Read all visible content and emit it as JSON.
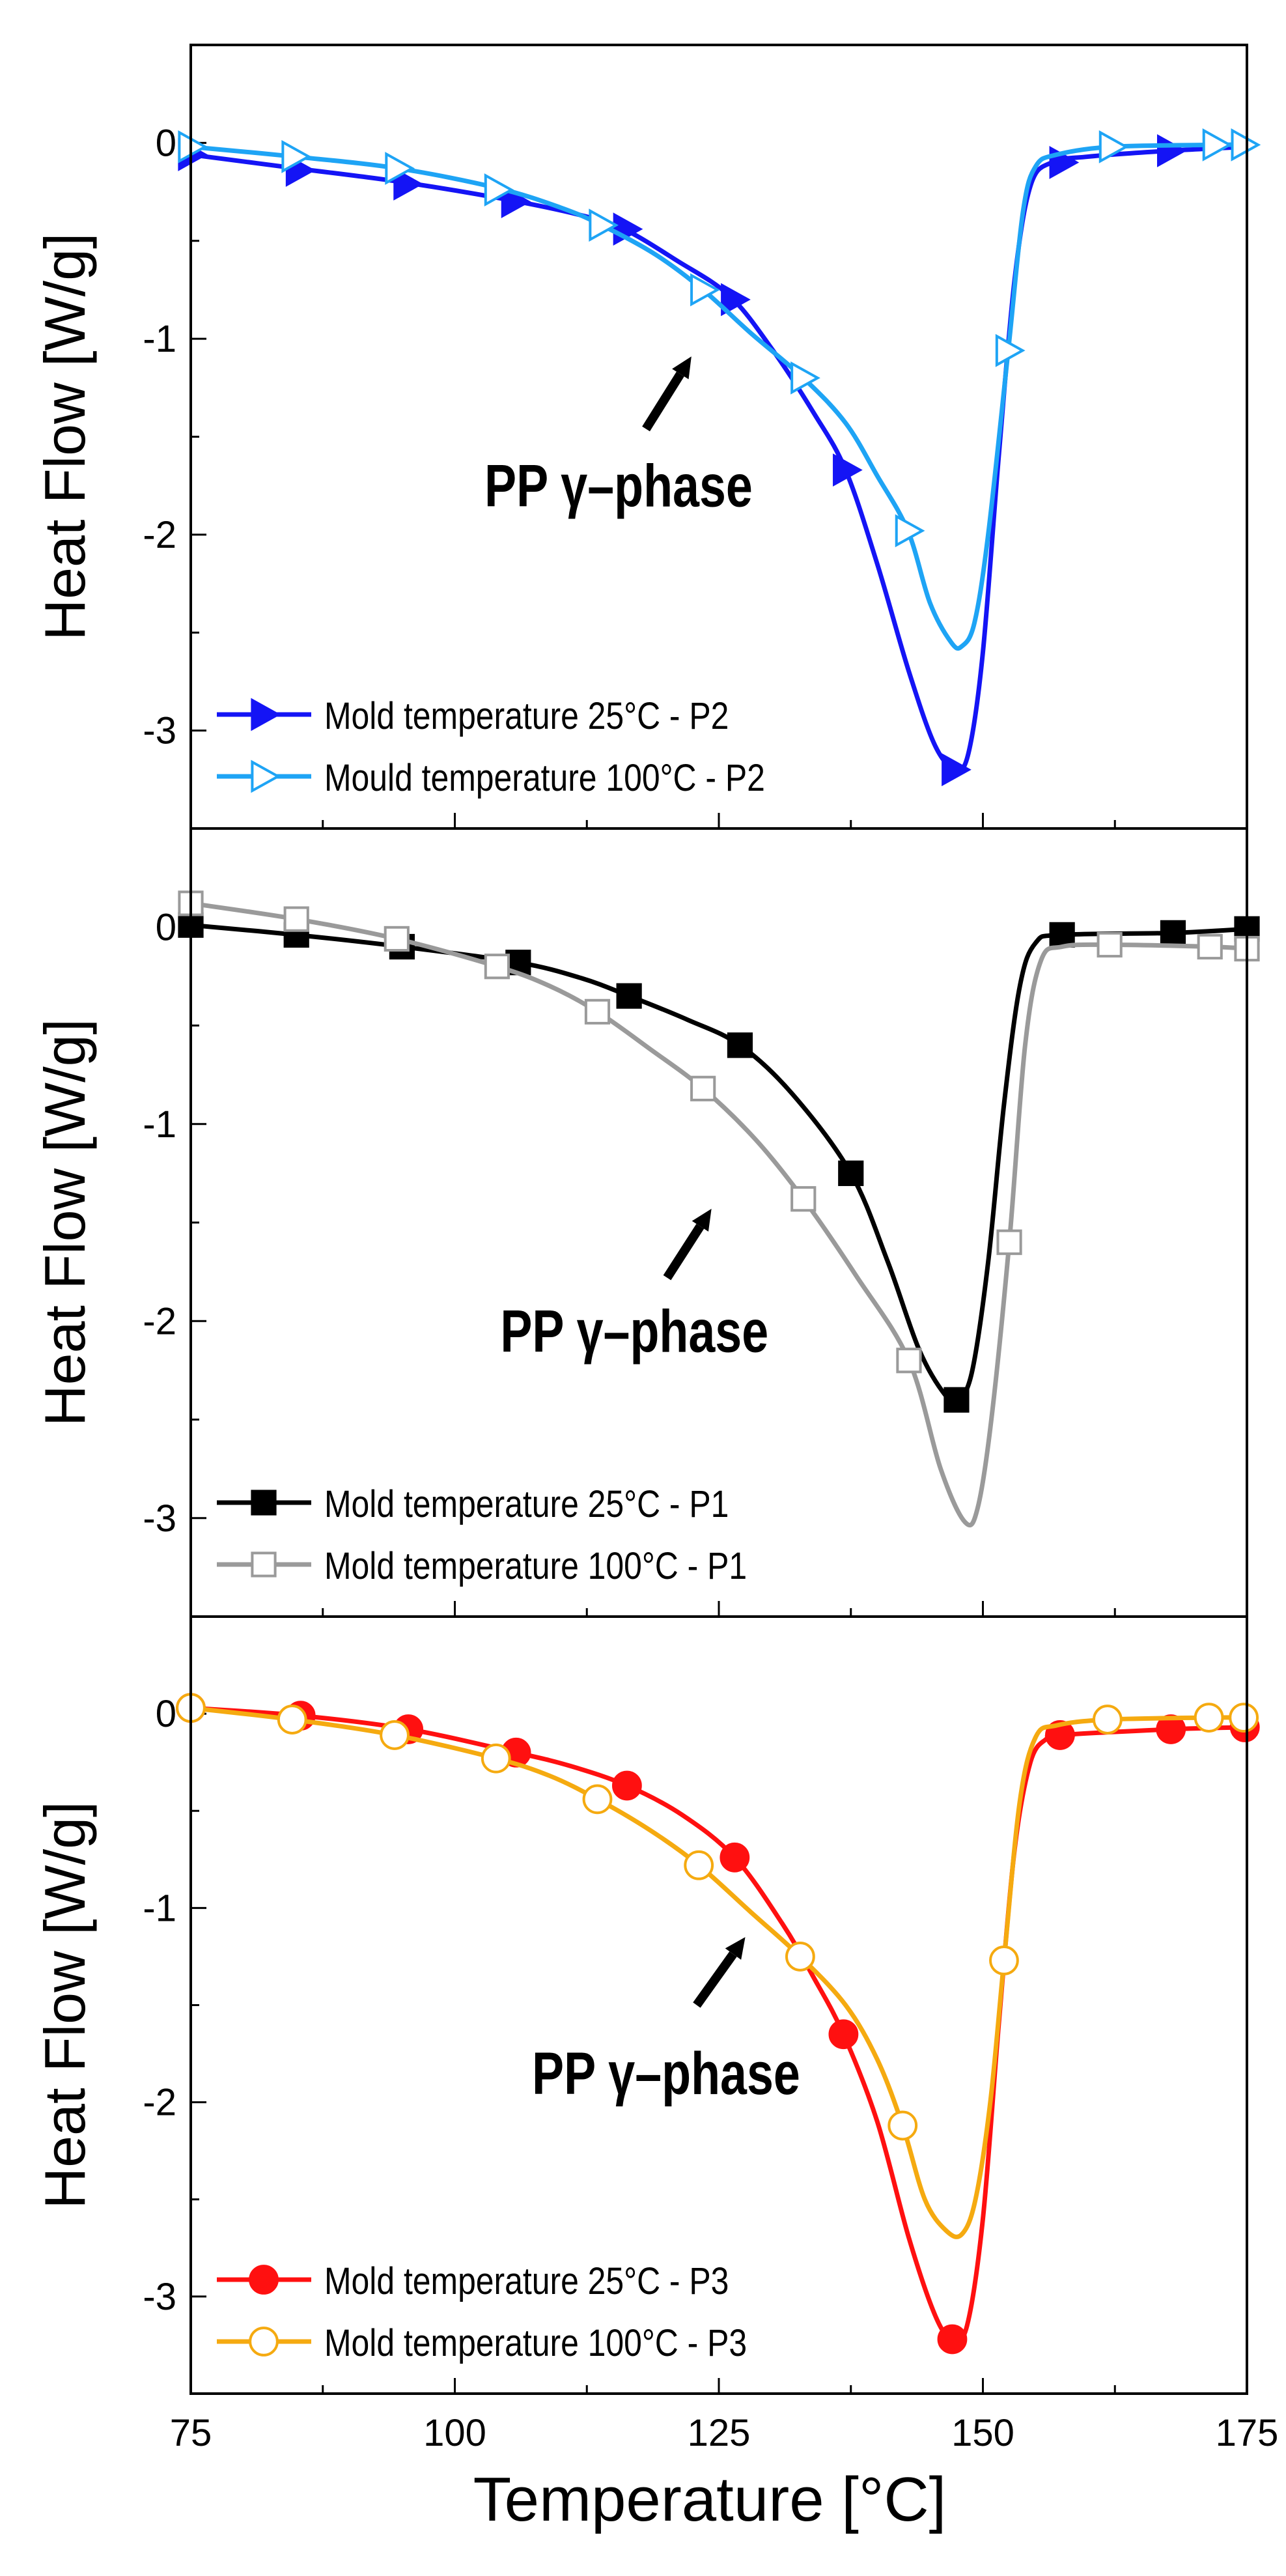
{
  "chart_data": [
    {
      "type": "line",
      "panel": "top",
      "xlim": [
        75,
        175
      ],
      "ylim": [
        -3.5,
        0.5
      ],
      "xticks": [
        75,
        100,
        125,
        150,
        175
      ],
      "yticks": [
        0,
        -1,
        -2,
        -3
      ],
      "ylabel": "Heat Flow [W/g]",
      "legend_position": "bottom-left",
      "annotation": {
        "text": "PP γ–phase",
        "x": 115.5,
        "y": -1.75,
        "arrow_from": [
          118.1,
          -1.46
        ],
        "arrow_to": [
          122.4,
          -1.09
        ]
      },
      "series": [
        {
          "name": "Mold temperature 25°C - P2",
          "color": "#1414f5",
          "marker": "triangle-right-filled",
          "curve": [
            [
              75,
              -0.06
            ],
            [
              85,
              -0.13
            ],
            [
              95,
              -0.2
            ],
            [
              105,
              -0.29
            ],
            [
              112,
              -0.37
            ],
            [
              116,
              -0.44
            ],
            [
              121,
              -0.6
            ],
            [
              126,
              -0.78
            ],
            [
              130,
              -1.05
            ],
            [
              134,
              -1.38
            ],
            [
              137,
              -1.67
            ],
            [
              140,
              -2.15
            ],
            [
              143,
              -2.7
            ],
            [
              145.5,
              -3.08
            ],
            [
              147.5,
              -3.2
            ],
            [
              148.7,
              -3.1
            ],
            [
              150,
              -2.6
            ],
            [
              151.5,
              -1.6
            ],
            [
              153,
              -0.7
            ],
            [
              154.5,
              -0.22
            ],
            [
              156.5,
              -0.1
            ],
            [
              160,
              -0.07
            ],
            [
              167.7,
              -0.04
            ],
            [
              175,
              -0.02
            ]
          ],
          "markers": [
            [
              75,
              -0.06
            ],
            [
              85.2,
              -0.14
            ],
            [
              95.4,
              -0.21
            ],
            [
              105.6,
              -0.3
            ],
            [
              116.2,
              -0.44
            ],
            [
              126.4,
              -0.8
            ],
            [
              137,
              -1.67
            ],
            [
              147.3,
              -3.2
            ],
            [
              157.5,
              -0.1
            ],
            [
              167.7,
              -0.04
            ]
          ]
        },
        {
          "name": "Mould temperature 100°C - P2",
          "color": "#1ea4f5",
          "marker": "triangle-right-open",
          "curve": [
            [
              75,
              -0.02
            ],
            [
              84.8,
              -0.07
            ],
            [
              94.6,
              -0.13
            ],
            [
              104,
              -0.23
            ],
            [
              110,
              -0.33
            ],
            [
              113.9,
              -0.42
            ],
            [
              119,
              -0.57
            ],
            [
              123.5,
              -0.75
            ],
            [
              128,
              -0.97
            ],
            [
              133,
              -1.2
            ],
            [
              137,
              -1.43
            ],
            [
              140,
              -1.7
            ],
            [
              142.9,
              -1.98
            ],
            [
              145,
              -2.35
            ],
            [
              147,
              -2.55
            ],
            [
              148,
              -2.57
            ],
            [
              149.2,
              -2.45
            ],
            [
              150.5,
              -2.0
            ],
            [
              152.4,
              -1.06
            ],
            [
              153.8,
              -0.35
            ],
            [
              155,
              -0.12
            ],
            [
              157,
              -0.06
            ],
            [
              162.2,
              -0.02
            ],
            [
              172,
              -0.01
            ],
            [
              174.7,
              -0.01
            ]
          ],
          "markers": [
            [
              75,
              -0.02
            ],
            [
              84.8,
              -0.07
            ],
            [
              94.6,
              -0.13
            ],
            [
              104,
              -0.24
            ],
            [
              113.9,
              -0.42
            ],
            [
              123.5,
              -0.75
            ],
            [
              133,
              -1.2
            ],
            [
              142.9,
              -1.98
            ],
            [
              152.4,
              -1.06
            ],
            [
              162.2,
              -0.02
            ],
            [
              172,
              -0.01
            ],
            [
              174.7,
              -0.01
            ]
          ]
        }
      ]
    },
    {
      "type": "line",
      "panel": "middle",
      "xlim": [
        75,
        175
      ],
      "ylim": [
        -3.5,
        0.5
      ],
      "xticks": [
        75,
        100,
        125,
        150,
        175
      ],
      "yticks": [
        0,
        -1,
        -2,
        -3
      ],
      "ylabel": "Heat Flow [W/g]",
      "legend_position": "bottom-left",
      "annotation": {
        "text": "PP γ–phase",
        "x": 117,
        "y": -2.05,
        "arrow_from": [
          120.1,
          -1.78
        ],
        "arrow_to": [
          124.3,
          -1.43
        ]
      },
      "series": [
        {
          "name": "Mold temperature 25°C - P1",
          "color": "#000000",
          "marker": "square-filled",
          "curve": [
            [
              75,
              0.01
            ],
            [
              85,
              -0.04
            ],
            [
              95,
              -0.1
            ],
            [
              106,
              -0.18
            ],
            [
              112,
              -0.26
            ],
            [
              116.5,
              -0.35
            ],
            [
              122,
              -0.47
            ],
            [
              127,
              -0.6
            ],
            [
              132,
              -0.85
            ],
            [
              137.5,
              -1.25
            ],
            [
              141,
              -1.7
            ],
            [
              144,
              -2.15
            ],
            [
              146.5,
              -2.38
            ],
            [
              147.7,
              -2.4
            ],
            [
              149,
              -2.25
            ],
            [
              150.5,
              -1.7
            ],
            [
              152,
              -0.9
            ],
            [
              153.5,
              -0.3
            ],
            [
              155,
              -0.08
            ],
            [
              157.5,
              -0.04
            ],
            [
              168,
              -0.03
            ],
            [
              175,
              -0.01
            ]
          ],
          "markers": [
            [
              75,
              0.01
            ],
            [
              85,
              -0.04
            ],
            [
              95,
              -0.1
            ],
            [
              106,
              -0.18
            ],
            [
              116.5,
              -0.35
            ],
            [
              127,
              -0.6
            ],
            [
              137.5,
              -1.25
            ],
            [
              147.5,
              -2.4
            ],
            [
              157.5,
              -0.04
            ],
            [
              168,
              -0.03
            ],
            [
              175,
              -0.01
            ]
          ]
        },
        {
          "name": "Mold temperature 100°C - P1",
          "color": "#9a9a9a",
          "marker": "square-open",
          "curve": [
            [
              75,
              0.12
            ],
            [
              85,
              0.04
            ],
            [
              94.5,
              -0.06
            ],
            [
              104,
              -0.2
            ],
            [
              109,
              -0.3
            ],
            [
              113.5,
              -0.43
            ],
            [
              118.5,
              -0.62
            ],
            [
              123.5,
              -0.82
            ],
            [
              128.5,
              -1.08
            ],
            [
              133,
              -1.38
            ],
            [
              138,
              -1.77
            ],
            [
              143,
              -2.2
            ],
            [
              146,
              -2.75
            ],
            [
              148.3,
              -3.02
            ],
            [
              149.5,
              -2.95
            ],
            [
              150.8,
              -2.5
            ],
            [
              152.5,
              -1.6
            ],
            [
              154,
              -0.6
            ],
            [
              155.5,
              -0.17
            ],
            [
              157.5,
              -0.1
            ],
            [
              162,
              -0.09
            ],
            [
              171.5,
              -0.1
            ],
            [
              175,
              -0.11
            ]
          ],
          "markers": [
            [
              75,
              0.12
            ],
            [
              85,
              0.04
            ],
            [
              94.5,
              -0.06
            ],
            [
              104,
              -0.2
            ],
            [
              113.5,
              -0.43
            ],
            [
              123.5,
              -0.82
            ],
            [
              133,
              -1.38
            ],
            [
              143,
              -2.2
            ],
            [
              152.5,
              -1.6
            ],
            [
              162,
              -0.09
            ],
            [
              171.5,
              -0.1
            ],
            [
              175,
              -0.11
            ]
          ]
        }
      ]
    },
    {
      "type": "line",
      "panel": "bottom",
      "xlim": [
        75,
        175
      ],
      "ylim": [
        -3.5,
        0.5
      ],
      "xticks": [
        75,
        100,
        125,
        150,
        175
      ],
      "yticks": [
        0,
        -1,
        -2,
        -3
      ],
      "xlabel": "Temperature [°C]",
      "ylabel": "Heat Flow [W/g]",
      "legend_position": "bottom-left",
      "annotation": {
        "text": "PP γ–phase",
        "x": 120,
        "y": -1.85,
        "arrow_from": [
          122.9,
          -1.5
        ],
        "arrow_to": [
          127.5,
          -1.15
        ]
      },
      "series": [
        {
          "name": "Mold temperature 25°C - P3",
          "color": "#ff1010",
          "marker": "circle-filled",
          "curve": [
            [
              75,
              0.03
            ],
            [
              85.4,
              -0.01
            ],
            [
              95.6,
              -0.08
            ],
            [
              105.8,
              -0.2
            ],
            [
              111,
              -0.27
            ],
            [
              116.3,
              -0.37
            ],
            [
              121.5,
              -0.52
            ],
            [
              126.5,
              -0.74
            ],
            [
              131,
              -1.08
            ],
            [
              134,
              -1.36
            ],
            [
              136.8,
              -1.65
            ],
            [
              140,
              -2.1
            ],
            [
              143,
              -2.7
            ],
            [
              145.5,
              -3.1
            ],
            [
              147.1,
              -3.22
            ],
            [
              148.5,
              -3.15
            ],
            [
              150,
              -2.6
            ],
            [
              151.5,
              -1.6
            ],
            [
              153,
              -0.7
            ],
            [
              154.5,
              -0.25
            ],
            [
              156,
              -0.13
            ],
            [
              157.3,
              -0.11
            ],
            [
              167.8,
              -0.08
            ],
            [
              174.8,
              -0.07
            ]
          ],
          "markers": [
            [
              75,
              0.03
            ],
            [
              85.4,
              -0.01
            ],
            [
              95.6,
              -0.08
            ],
            [
              105.8,
              -0.2
            ],
            [
              116.3,
              -0.37
            ],
            [
              126.5,
              -0.74
            ],
            [
              136.8,
              -1.65
            ],
            [
              147.1,
              -3.22
            ],
            [
              157.3,
              -0.11
            ],
            [
              167.8,
              -0.08
            ],
            [
              174.8,
              -0.07
            ]
          ]
        },
        {
          "name": "Mold temperature 100°C - P3",
          "color": "#f5aa10",
          "marker": "circle-open",
          "curve": [
            [
              75,
              0.03
            ],
            [
              84.6,
              -0.03
            ],
            [
              94.3,
              -0.11
            ],
            [
              103.9,
              -0.23
            ],
            [
              109,
              -0.32
            ],
            [
              113.5,
              -0.44
            ],
            [
              118.5,
              -0.6
            ],
            [
              123.1,
              -0.78
            ],
            [
              128,
              -1.02
            ],
            [
              132.7,
              -1.25
            ],
            [
              137,
              -1.5
            ],
            [
              140,
              -1.78
            ],
            [
              142.4,
              -2.12
            ],
            [
              144.5,
              -2.5
            ],
            [
              146.5,
              -2.66
            ],
            [
              148,
              -2.68
            ],
            [
              149.3,
              -2.5
            ],
            [
              150.7,
              -2.0
            ],
            [
              152,
              -1.27
            ],
            [
              153.5,
              -0.45
            ],
            [
              155,
              -0.12
            ],
            [
              157,
              -0.06
            ],
            [
              161.8,
              -0.03
            ],
            [
              171.4,
              -0.02
            ],
            [
              174.7,
              -0.02
            ]
          ],
          "markers": [
            [
              75,
              0.03
            ],
            [
              84.6,
              -0.03
            ],
            [
              94.3,
              -0.11
            ],
            [
              103.9,
              -0.23
            ],
            [
              113.5,
              -0.44
            ],
            [
              123.1,
              -0.78
            ],
            [
              132.7,
              -1.25
            ],
            [
              142.4,
              -2.12
            ],
            [
              152,
              -1.27
            ],
            [
              161.8,
              -0.03
            ],
            [
              171.4,
              -0.02
            ],
            [
              174.7,
              -0.02
            ]
          ]
        }
      ]
    }
  ]
}
